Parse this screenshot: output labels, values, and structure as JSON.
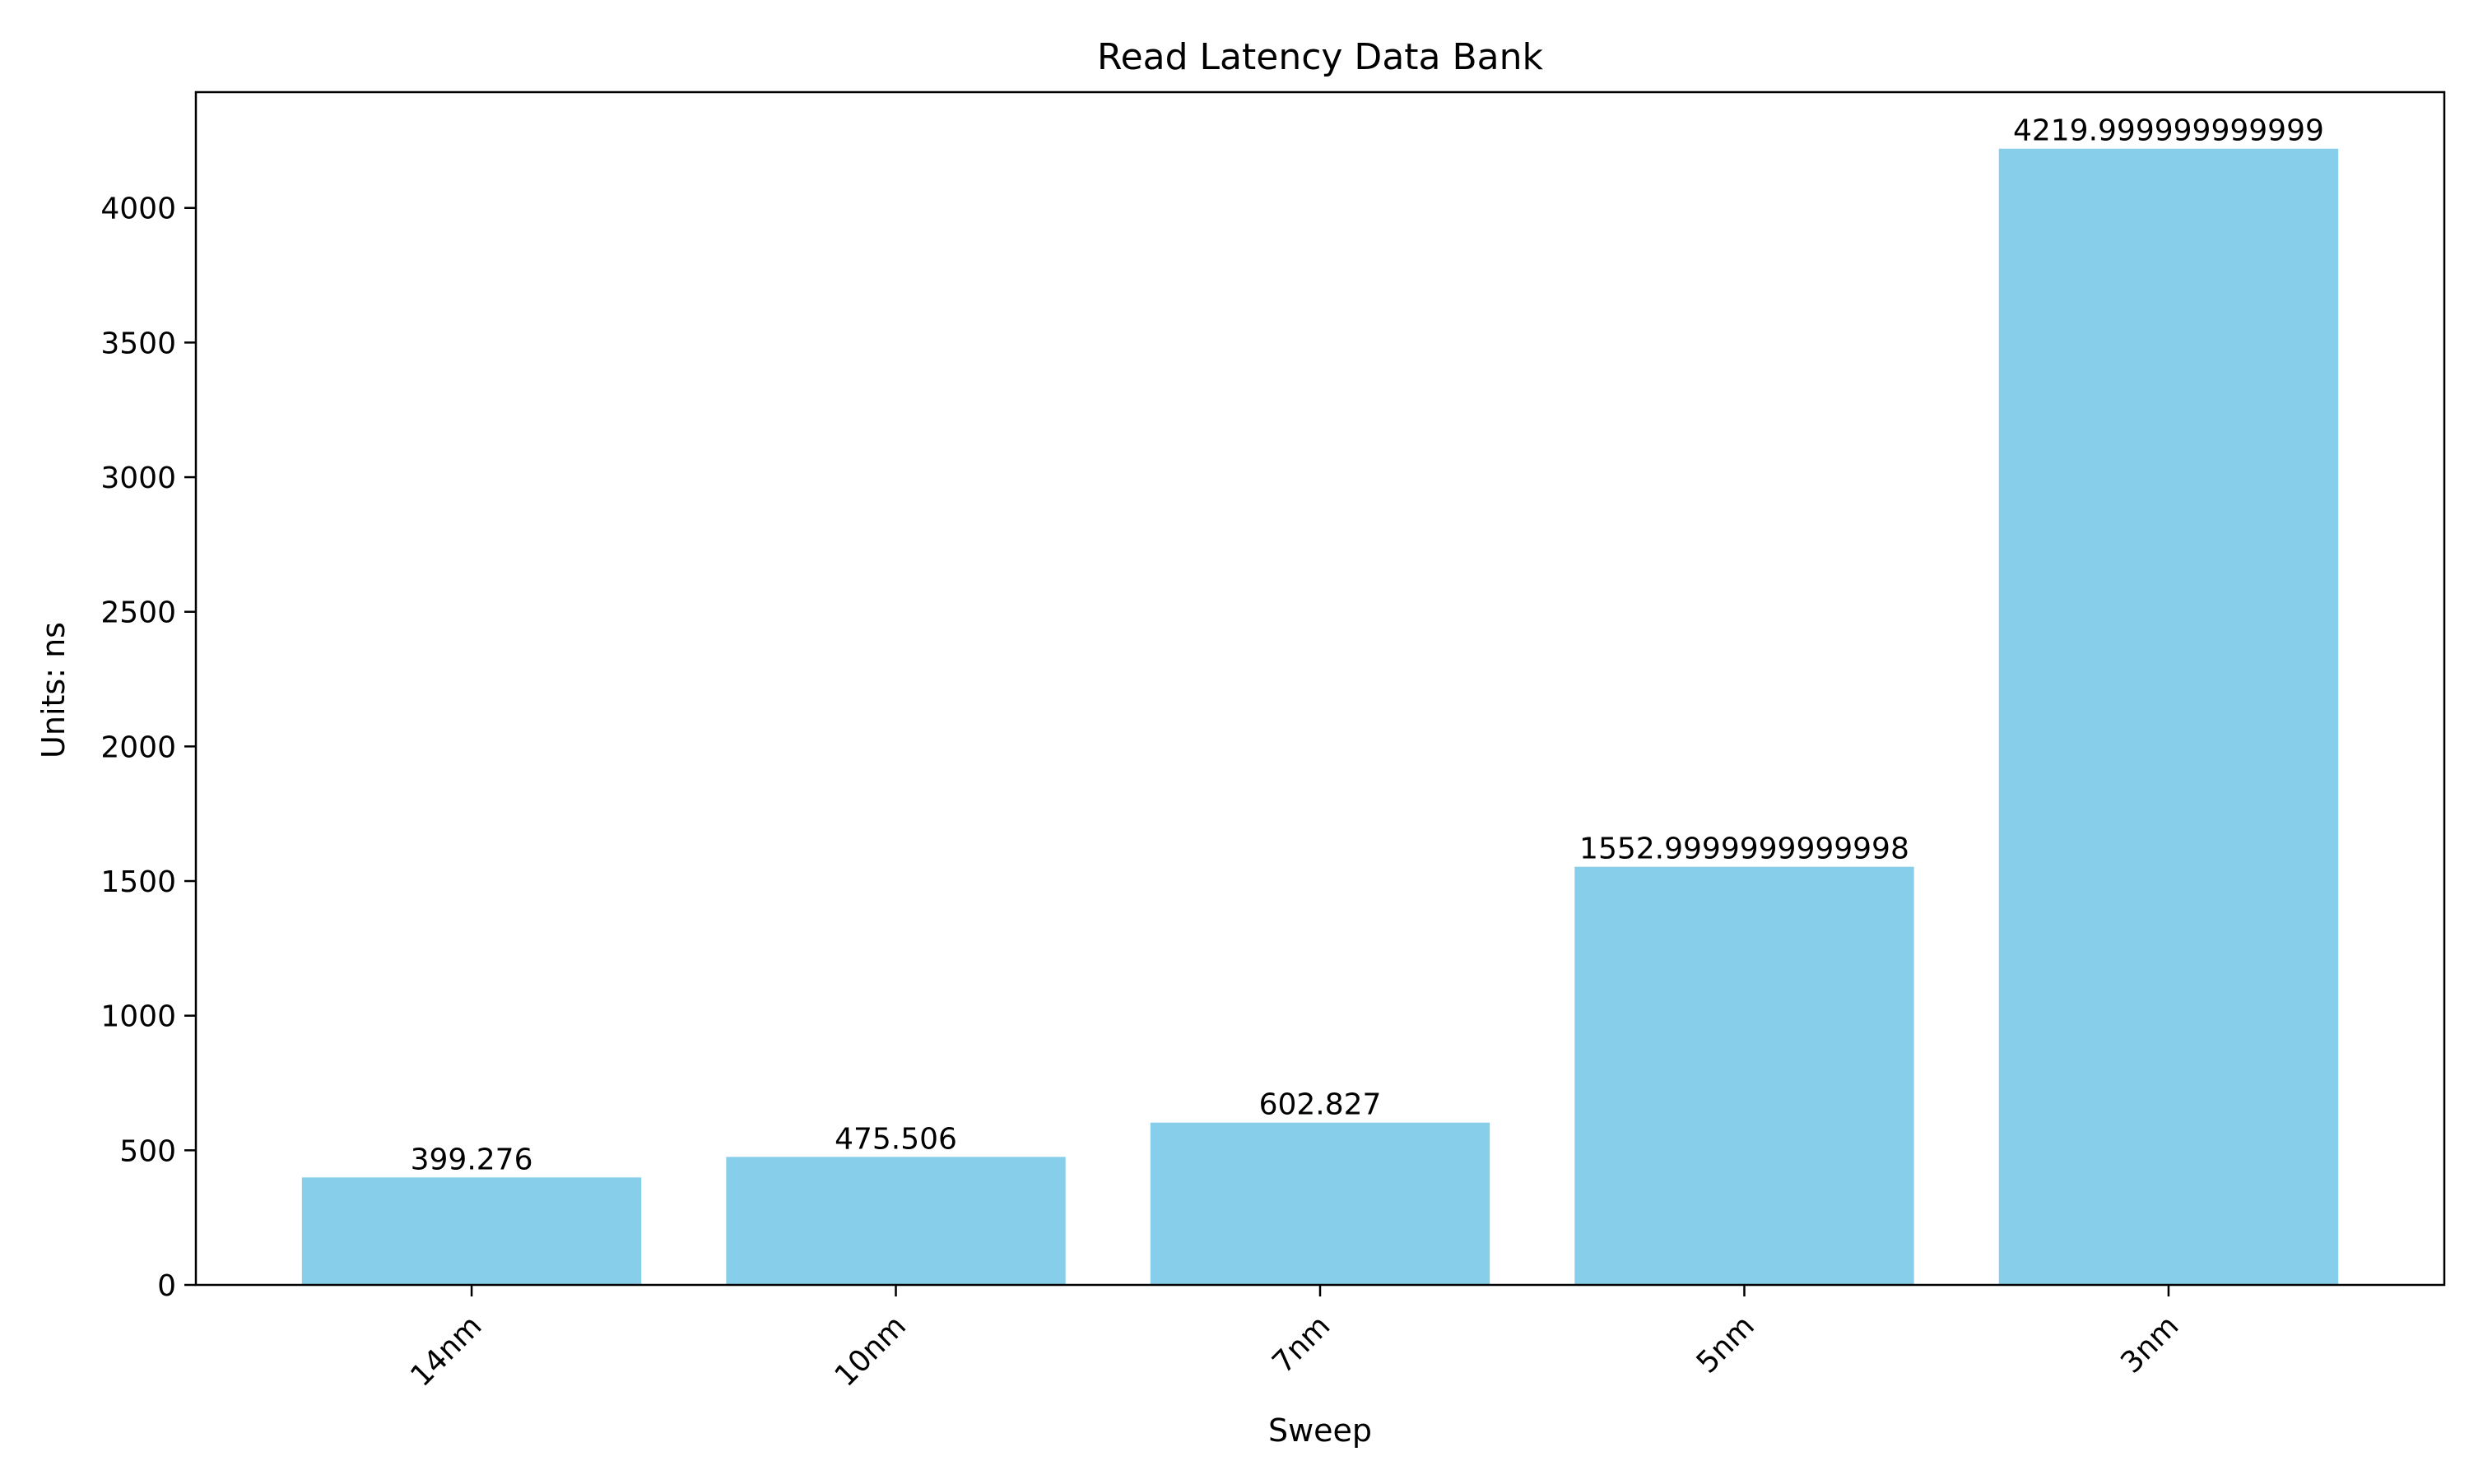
{
  "chart_data": {
    "type": "bar",
    "title": "Read Latency Data Bank",
    "xlabel": "Sweep",
    "ylabel": "Units: ns",
    "categories": [
      "14nm",
      "10nm",
      "7nm",
      "5nm",
      "3nm"
    ],
    "values": [
      399.276,
      475.506,
      602.827,
      1552.9999999999998,
      4219.999999999999
    ],
    "data_labels": [
      "399.276",
      "475.506",
      "602.827",
      "1552.9999999999998",
      "4219.999999999999"
    ],
    "y_ticks": [
      0,
      500,
      1000,
      1500,
      2000,
      2500,
      3000,
      3500,
      4000
    ],
    "ylim": [
      0,
      4430
    ],
    "grid": false,
    "bar_color": "#87CEEB",
    "axis_color": "#000000"
  }
}
